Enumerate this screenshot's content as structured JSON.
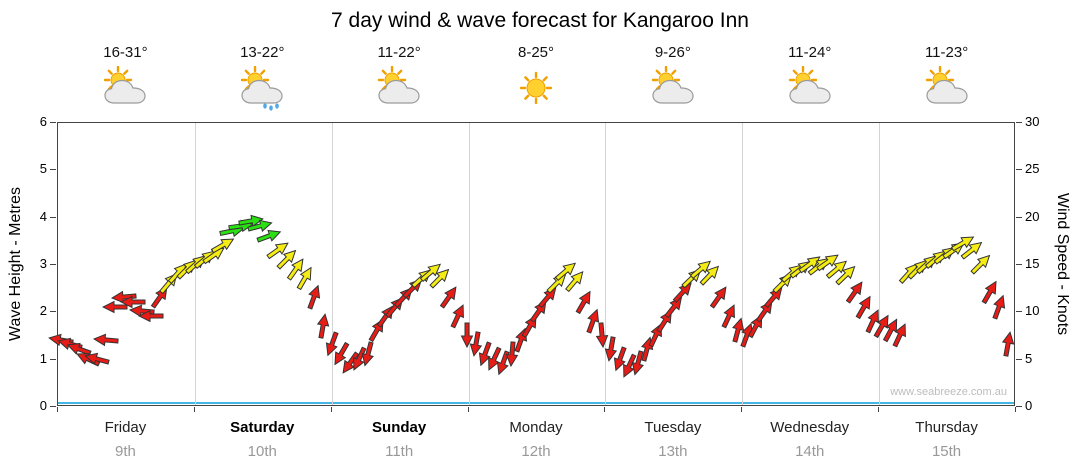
{
  "page": {
    "title": "7 day wind & wave forecast for Kangaroo Inn",
    "watermark": "www.seabreeze.com.au"
  },
  "days": [
    {
      "name": "Friday",
      "date": "9th",
      "temp": "16-31°",
      "icon": "partly-cloudy",
      "bold": false
    },
    {
      "name": "Saturday",
      "date": "10th",
      "temp": "13-22°",
      "icon": "rain-showers",
      "bold": true
    },
    {
      "name": "Sunday",
      "date": "11th",
      "temp": "11-22°",
      "icon": "partly-cloudy",
      "bold": true
    },
    {
      "name": "Monday",
      "date": "12th",
      "temp": "8-25°",
      "icon": "sunny",
      "bold": false
    },
    {
      "name": "Tuesday",
      "date": "13th",
      "temp": "9-26°",
      "icon": "partly-cloudy",
      "bold": false
    },
    {
      "name": "Wednesday",
      "date": "14th",
      "temp": "11-24°",
      "icon": "partly-cloudy",
      "bold": false
    },
    {
      "name": "Thursday",
      "date": "15th",
      "temp": "11-23°",
      "icon": "partly-cloudy",
      "bold": false
    }
  ],
  "axes": {
    "left": {
      "label": "Wave Height - Metres",
      "ticks": [
        0,
        1,
        2,
        3,
        4,
        5,
        6
      ],
      "max": 6
    },
    "right": {
      "label": "Wind Speed - Knots",
      "ticks": [
        0,
        5,
        10,
        15,
        20,
        25,
        30
      ],
      "max": 30
    }
  },
  "chart_data": {
    "type": "scatter",
    "subtype": "wind-direction-arrow-timeseries",
    "title": "7 day wind & wave forecast for Kangaroo Inn",
    "x_categories": [
      "Friday 9th",
      "Saturday 10th",
      "Sunday 11th",
      "Monday 12th",
      "Tuesday 13th",
      "Wednesday 14th",
      "Thursday 15th"
    ],
    "x_range_days": [
      0,
      7
    ],
    "y_left_label": "Wave Height - Metres",
    "y_left_range": [
      0,
      6
    ],
    "y_right_label": "Wind Speed - Knots",
    "y_right_range": [
      0,
      30
    ],
    "grid": "vertical-day-boundaries",
    "direction_convention": "screen degrees: 0 = arrow points right, positive = clockwise",
    "speed_colors": [
      {
        "max_kn": 13,
        "color": "#e81c17",
        "name": "red"
      },
      {
        "max_kn": 18,
        "color": "#f4ec14",
        "name": "yellow"
      },
      {
        "max_kn": 99,
        "color": "#2adf12",
        "name": "green"
      }
    ],
    "wave_height_line": {
      "approx_m": 0.1,
      "color": "#45b5e6",
      "shape": "flat line near zero across all 7 days"
    },
    "arrow_series": {
      "unit": "knots",
      "t_start_days": 0.03,
      "t_step_days": 0.0659,
      "points": [
        [
          7,
          190
        ],
        [
          6.5,
          195
        ],
        [
          6,
          200
        ],
        [
          5,
          205
        ],
        [
          5,
          195
        ],
        [
          7,
          185
        ],
        [
          10.5,
          180
        ],
        [
          11.5,
          175
        ],
        [
          11,
          180
        ],
        [
          10,
          185
        ],
        [
          9.5,
          180
        ],
        [
          11.5,
          -55
        ],
        [
          13,
          -50
        ],
        [
          14,
          -48
        ],
        [
          14.5,
          -45
        ],
        [
          15,
          -42
        ],
        [
          15.5,
          -40
        ],
        [
          16,
          -35
        ],
        [
          17,
          -30
        ],
        [
          18.5,
          -12
        ],
        [
          19,
          -8
        ],
        [
          19.5,
          -10
        ],
        [
          19,
          -15
        ],
        [
          18,
          -20
        ],
        [
          16.5,
          -35
        ],
        [
          15.5,
          -45
        ],
        [
          14.5,
          -55
        ],
        [
          13.5,
          -60
        ],
        [
          11.5,
          -70
        ],
        [
          8.5,
          -80
        ],
        [
          6.5,
          110
        ],
        [
          5.5,
          120
        ],
        [
          4.5,
          125
        ],
        [
          5,
          115
        ],
        [
          5.5,
          105
        ],
        [
          8,
          -60
        ],
        [
          9.5,
          -55
        ],
        [
          10.5,
          -50
        ],
        [
          11.5,
          -48
        ],
        [
          12.5,
          -45
        ],
        [
          13.5,
          -42
        ],
        [
          14.2,
          -40
        ],
        [
          13.5,
          -45
        ],
        [
          11.5,
          -55
        ],
        [
          9.5,
          -65
        ],
        [
          7.5,
          90
        ],
        [
          6.5,
          100
        ],
        [
          5.5,
          110
        ],
        [
          5,
          115
        ],
        [
          4.5,
          110
        ],
        [
          5.5,
          95
        ],
        [
          7,
          -70
        ],
        [
          8.5,
          -60
        ],
        [
          10,
          -55
        ],
        [
          11.5,
          -50
        ],
        [
          13,
          -45
        ],
        [
          14.3,
          -40
        ],
        [
          13.2,
          -50
        ],
        [
          11,
          -60
        ],
        [
          9,
          -70
        ],
        [
          7.5,
          85
        ],
        [
          6,
          100
        ],
        [
          5,
          110
        ],
        [
          4.2,
          115
        ],
        [
          4.5,
          105
        ],
        [
          6,
          -75
        ],
        [
          7.5,
          -65
        ],
        [
          9,
          -58
        ],
        [
          10.5,
          -52
        ],
        [
          12,
          -48
        ],
        [
          13.5,
          -44
        ],
        [
          14.5,
          -40
        ],
        [
          13.8,
          -46
        ],
        [
          11.5,
          -55
        ],
        [
          9.5,
          -65
        ],
        [
          8,
          -75
        ],
        [
          7.5,
          -70
        ],
        [
          8.5,
          -62
        ],
        [
          10,
          -55
        ],
        [
          11.5,
          -50
        ],
        [
          13,
          -45
        ],
        [
          14,
          -40
        ],
        [
          14.5,
          -38
        ],
        [
          15,
          -36
        ],
        [
          14.8,
          -38
        ],
        [
          15.2,
          -35
        ],
        [
          14.5,
          -40
        ],
        [
          13.8,
          -44
        ],
        [
          12,
          -55
        ],
        [
          10.5,
          -60
        ],
        [
          9,
          -65
        ],
        [
          8.5,
          -60
        ],
        [
          8,
          -62
        ],
        [
          7.5,
          -65
        ],
        [
          14,
          -48
        ],
        [
          14.5,
          -45
        ],
        [
          15,
          -42
        ],
        [
          15.5,
          -40
        ],
        [
          16,
          -38
        ],
        [
          16.5,
          -35
        ],
        [
          17.2,
          -30
        ],
        [
          16.5,
          -38
        ],
        [
          15,
          -45
        ],
        [
          12,
          -60
        ],
        [
          10.5,
          -70
        ],
        [
          6.5,
          -80
        ]
      ]
    }
  }
}
